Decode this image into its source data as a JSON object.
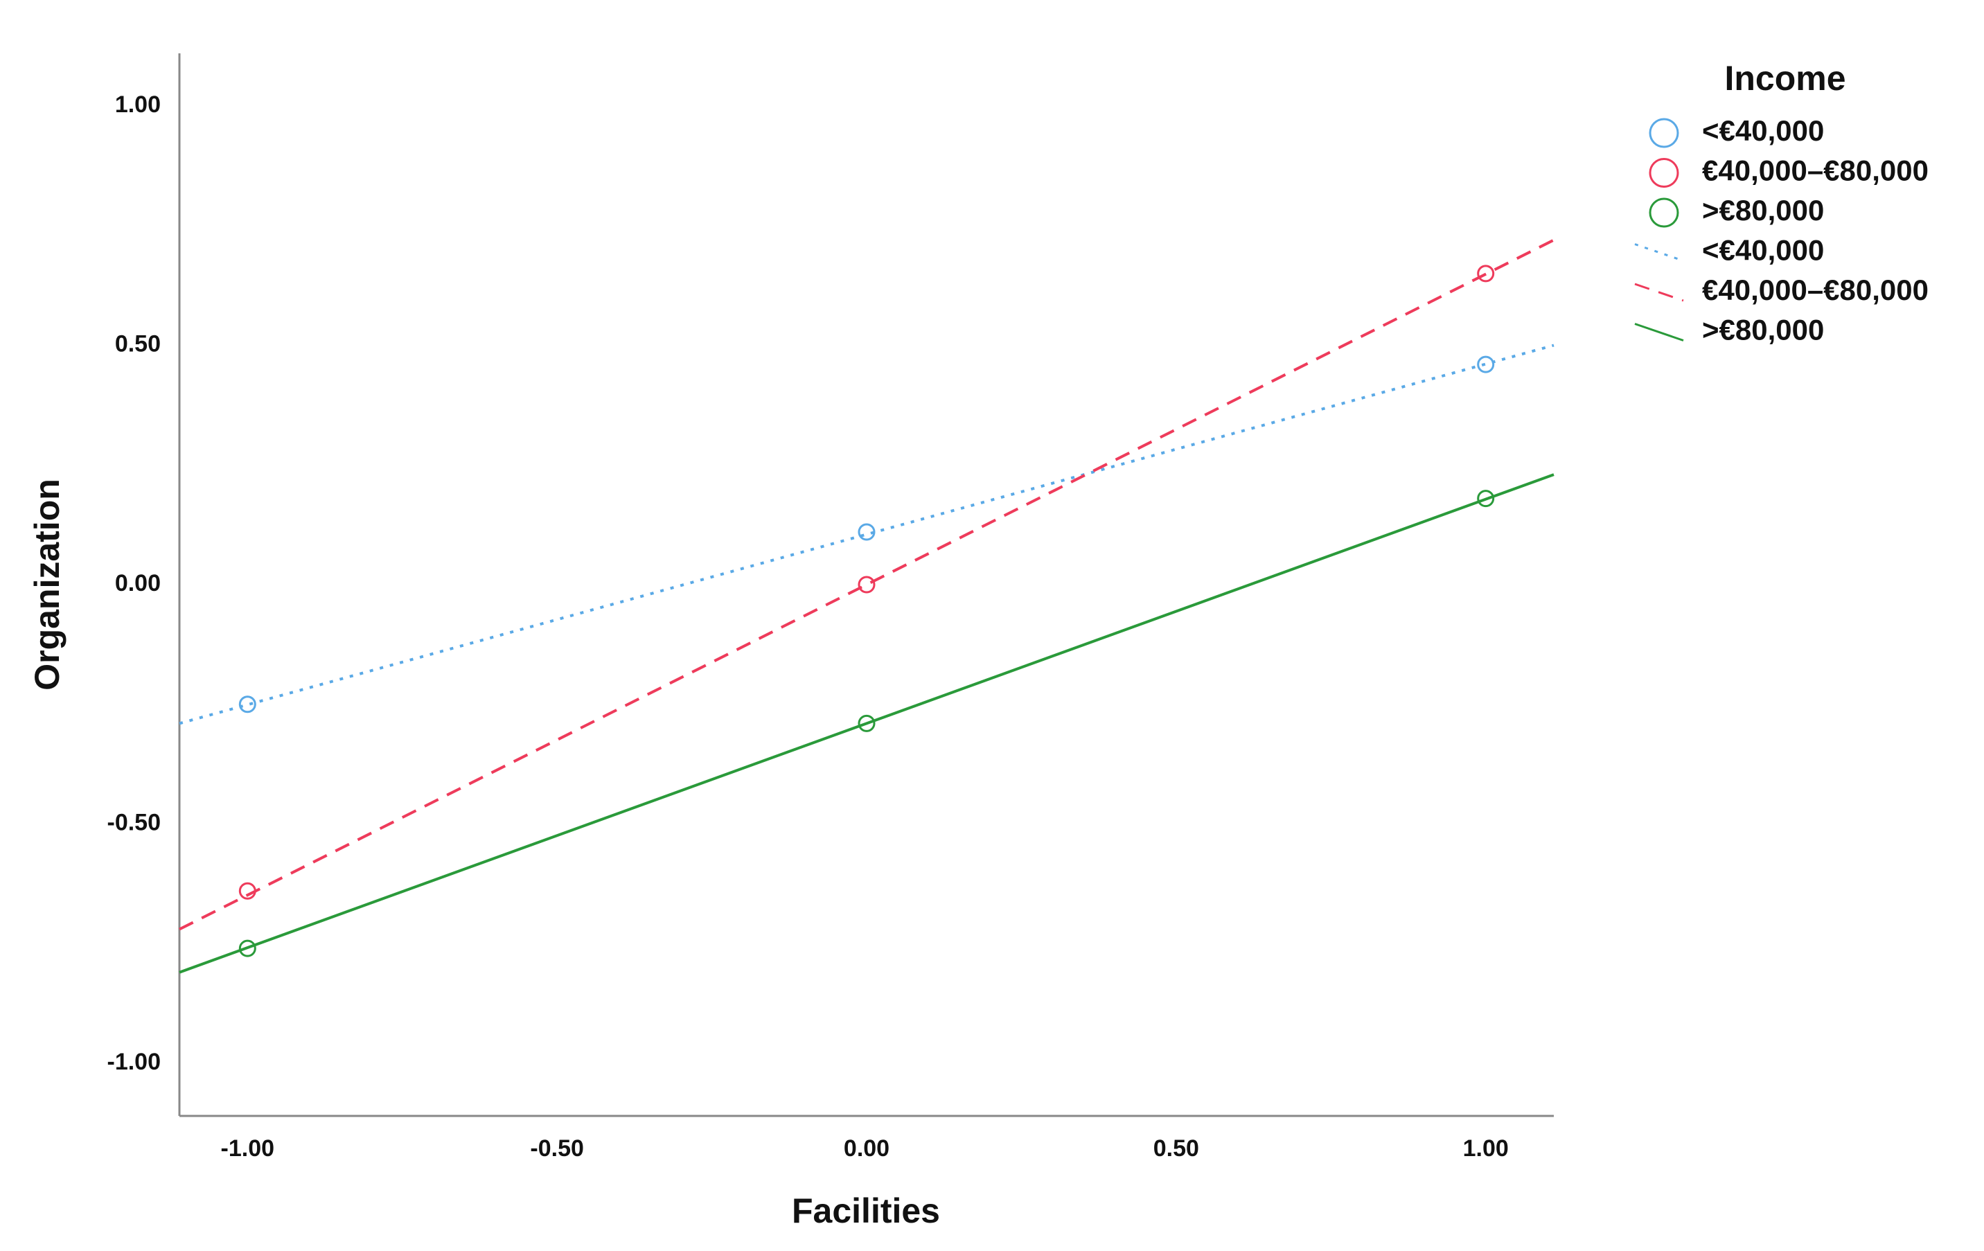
{
  "chart_data": {
    "type": "scatter",
    "x_label": "Facilities",
    "y_label": "Organization",
    "legend_title": "Income",
    "legend_position": "right",
    "x": [
      -1,
      0,
      1
    ],
    "series": [
      {
        "name": "<€40,000",
        "color": "#5aa9e6",
        "values": [
          -0.25,
          0.11,
          0.46
        ]
      },
      {
        "name": "€40,000–€80,000",
        "color": "#ee3b5b",
        "values": [
          -0.64,
          0.0,
          0.65
        ]
      },
      {
        "name": ">€80,000",
        "color": "#2a9a3a",
        "values": [
          -0.76,
          -0.29,
          0.18
        ]
      }
    ],
    "fit_lines": [
      {
        "name": "<€40,000",
        "color": "#5aa9e6",
        "dash": "dotted",
        "x": [
          -1.11,
          1.11
        ],
        "values": [
          -0.29,
          0.5
        ]
      },
      {
        "name": "€40,000–€80,000",
        "color": "#ee3b5b",
        "dash": "dashed",
        "x": [
          -1.11,
          1.11
        ],
        "values": [
          -0.72,
          0.72
        ]
      },
      {
        "name": ">€80,000",
        "color": "#2a9a3a",
        "dash": "solid",
        "x": [
          -1.11,
          1.11
        ],
        "values": [
          -0.81,
          0.23
        ]
      }
    ],
    "xlim": [
      -1.11,
      1.11
    ],
    "ylim": [
      -1.11,
      1.11
    ],
    "xticks": [
      {
        "value": -1,
        "label": "-1.00"
      },
      {
        "value": -0.5,
        "label": "-0.50"
      },
      {
        "value": 0,
        "label": "0.00"
      },
      {
        "value": 0.5,
        "label": "0.50"
      },
      {
        "value": 1,
        "label": "1.00"
      }
    ],
    "yticks": [
      {
        "value": 1,
        "label": "1.00"
      },
      {
        "value": 0.5,
        "label": "0.50"
      },
      {
        "value": 0,
        "label": "0.00"
      },
      {
        "value": -0.5,
        "label": "-0.50"
      },
      {
        "value": -1,
        "label": "-1.00"
      }
    ],
    "grid": false
  }
}
